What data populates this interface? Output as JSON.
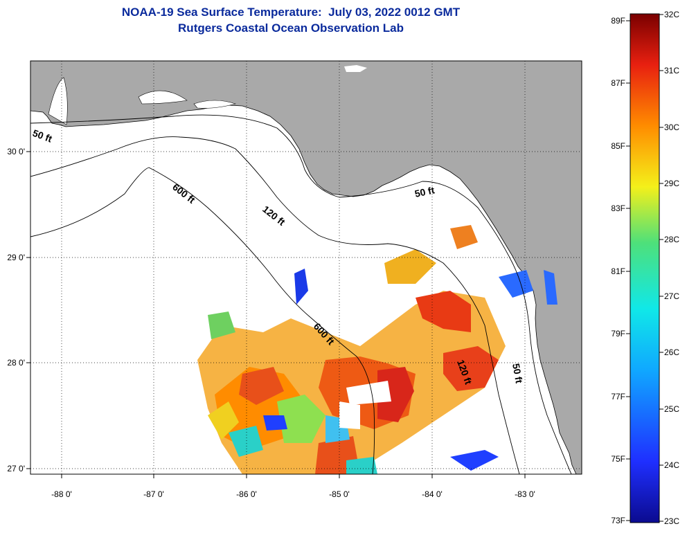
{
  "title": {
    "line1": "NOAA-19 Sea Surface Temperature:  July 03, 2022 0012 GMT",
    "line2": "Rutgers Coastal Ocean Observation Lab"
  },
  "map": {
    "lat_labels": [
      "30 0'",
      "29 0'",
      "28 0'",
      "27 0'"
    ],
    "lon_labels": [
      "-88 0'",
      "-87 0'",
      "-86 0'",
      "-85 0'",
      "-84 0'",
      "-83 0'"
    ],
    "contours": [
      "50 ft",
      "600 ft",
      "120 ft",
      "50 ft",
      "600 ft",
      "120 ft",
      "50 ft"
    ]
  },
  "colorbar": {
    "f_labels": [
      "89F",
      "87F",
      "85F",
      "83F",
      "81F",
      "79F",
      "77F",
      "75F",
      "73F"
    ],
    "c_labels": [
      "32C",
      "31C",
      "30C",
      "29C",
      "28C",
      "27C",
      "26C",
      "25C",
      "24C",
      "23C"
    ],
    "colors": {
      "deep_blue": "#0b0b8f",
      "blue": "#1f3fff",
      "cyan": "#10e8e8",
      "green": "#4ee07a",
      "yellow": "#f4f01a",
      "orange": "#ff8c00",
      "red": "#e82010",
      "dark_red": "#7a0000"
    }
  },
  "colors": {
    "land": "#a9a9a9",
    "title": "#0a2a9c"
  }
}
